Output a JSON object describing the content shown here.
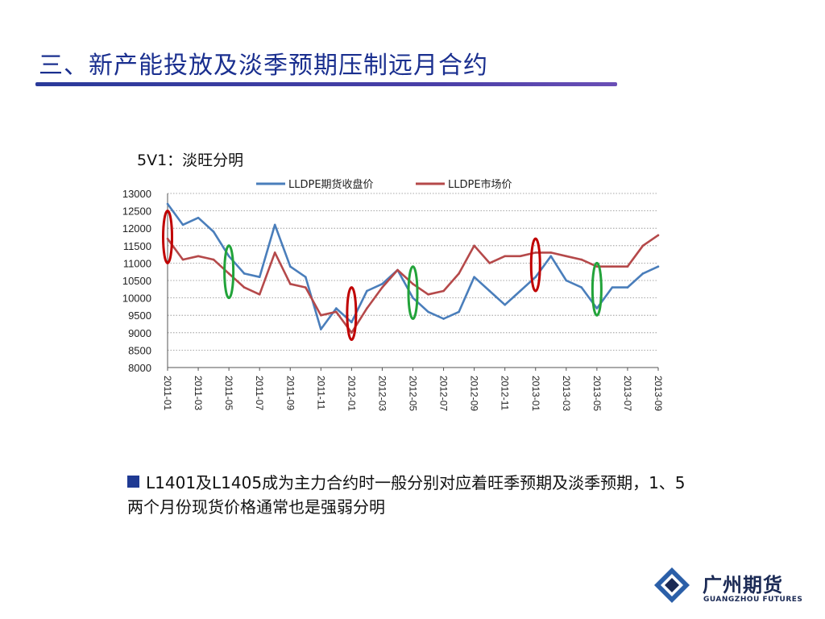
{
  "slide": {
    "title": "三、新产能投放及淡季预期压制远月合约",
    "chart_caption": "5V1：淡旺分明",
    "note": "L1401及L1405成为主力合约时一般分别对应着旺季预期及淡季预期，1、5两个月份现货价格通常也是强弱分明",
    "logo_text": "广州期货",
    "logo_sub": "GUANGZHOU FUTURES"
  },
  "colors": {
    "title": "#1a2f8f",
    "futures_series": "#4a7ebb",
    "spot_series": "#b5494a",
    "peak_ellipse": "#c00000",
    "trough_ellipse": "#22a33a",
    "logo": "#1b2a55"
  },
  "chart_data": {
    "type": "line",
    "title": "",
    "xlabel": "",
    "ylabel": "",
    "ylim": [
      8000,
      13000
    ],
    "yticks": [
      13000,
      12500,
      12000,
      11500,
      11000,
      10500,
      10000,
      9500,
      9000,
      8500,
      8000
    ],
    "x_tick_labels": [
      "2011-01",
      "2011-03",
      "2011-05",
      "2011-07",
      "2011-09",
      "2011-11",
      "2012-01",
      "2012-03",
      "2012-05",
      "2012-07",
      "2012-09",
      "2012-11",
      "2013-01",
      "2013-03",
      "2013-05",
      "2013-07",
      "2013-09"
    ],
    "grid": "horizontal dotted",
    "legend": "top",
    "x": [
      "2011-01",
      "2011-02",
      "2011-03",
      "2011-04",
      "2011-05",
      "2011-06",
      "2011-07",
      "2011-08",
      "2011-09",
      "2011-10",
      "2011-11",
      "2011-12",
      "2012-01",
      "2012-02",
      "2012-03",
      "2012-04",
      "2012-05",
      "2012-06",
      "2012-07",
      "2012-08",
      "2012-09",
      "2012-10",
      "2012-11",
      "2012-12",
      "2013-01",
      "2013-02",
      "2013-03",
      "2013-04",
      "2013-05",
      "2013-06",
      "2013-07",
      "2013-08",
      "2013-09"
    ],
    "series": [
      {
        "name": "LLDPE期货收盘价",
        "color": "#4a7ebb",
        "values": [
          12700,
          12100,
          12300,
          11900,
          11200,
          10700,
          10600,
          12100,
          10900,
          10600,
          9100,
          9700,
          9300,
          10200,
          10400,
          10800,
          10000,
          9600,
          9400,
          9600,
          10600,
          10200,
          9800,
          10200,
          10600,
          11200,
          10500,
          10300,
          9700,
          10300,
          10300,
          10700,
          10900
        ]
      },
      {
        "name": "LLDPE市场价",
        "color": "#b5494a",
        "values": [
          11700,
          11100,
          11200,
          11100,
          10700,
          10300,
          10100,
          11300,
          10400,
          10300,
          9500,
          9600,
          9000,
          9700,
          10300,
          10800,
          10400,
          10100,
          10200,
          10700,
          11500,
          11000,
          11200,
          11200,
          11300,
          11300,
          11200,
          11100,
          10900,
          10900,
          10900,
          11500,
          11800
        ]
      }
    ],
    "annotations": [
      {
        "date": "2011-01",
        "kind": "peak",
        "y_top": 12500,
        "y_bottom": 11000
      },
      {
        "date": "2011-05",
        "kind": "trough",
        "y_top": 11500,
        "y_bottom": 10000
      },
      {
        "date": "2012-01",
        "kind": "peak",
        "y_top": 10300,
        "y_bottom": 8800
      },
      {
        "date": "2012-05",
        "kind": "trough",
        "y_top": 10900,
        "y_bottom": 9400
      },
      {
        "date": "2013-01",
        "kind": "peak",
        "y_top": 11700,
        "y_bottom": 10200
      },
      {
        "date": "2013-05",
        "kind": "trough",
        "y_top": 11000,
        "y_bottom": 9500
      }
    ]
  }
}
